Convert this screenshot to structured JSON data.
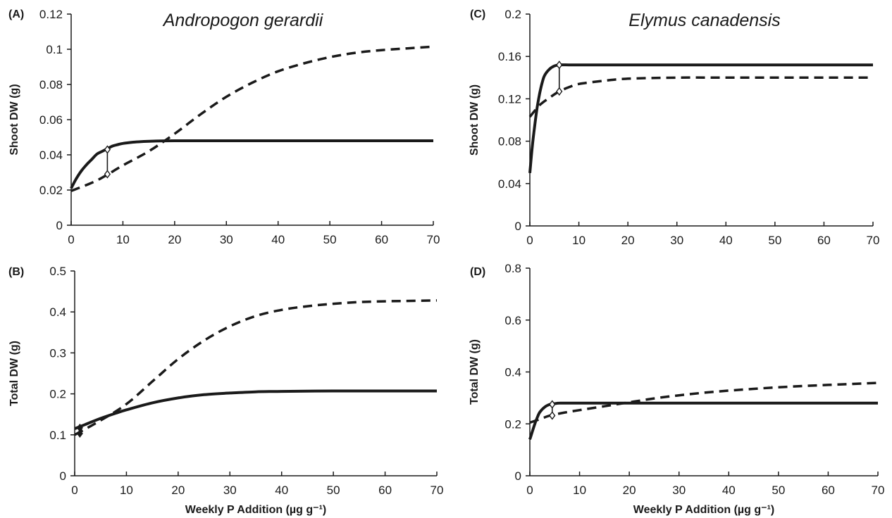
{
  "species": [
    "Andropogon gerardii",
    "Elymus canadensis"
  ],
  "chart_data": [
    {
      "id": "A",
      "panel_label": "(A)",
      "type": "line",
      "xlabel": "",
      "ylabel": "Shoot DW (g)",
      "xlim": [
        0,
        70
      ],
      "ylim": [
        0,
        0.12
      ],
      "xticks": [
        0,
        10,
        20,
        30,
        40,
        50,
        60,
        70
      ],
      "yticks": [
        0,
        0.02,
        0.04,
        0.06,
        0.08,
        0.1,
        0.12
      ],
      "ytick_labels": [
        "0",
        "0.02",
        "0.04",
        "0.06",
        "0.08",
        "0.1",
        "0.12"
      ],
      "series": [
        {
          "style": "solid",
          "x": [
            0,
            1,
            2,
            3,
            4,
            5,
            6,
            7,
            8,
            9,
            10,
            12,
            14,
            16,
            20,
            30,
            40,
            50,
            60,
            70
          ],
          "y": [
            0.021,
            0.0265,
            0.031,
            0.0345,
            0.0375,
            0.0405,
            0.042,
            0.0435,
            0.045,
            0.0458,
            0.0465,
            0.0472,
            0.0476,
            0.0478,
            0.048,
            0.048,
            0.048,
            0.048,
            0.048,
            0.048
          ]
        },
        {
          "style": "dashed",
          "x": [
            0,
            5,
            10,
            15,
            20,
            25,
            30,
            35,
            40,
            45,
            50,
            55,
            60,
            65,
            70
          ],
          "y": [
            0.0195,
            0.0255,
            0.034,
            0.042,
            0.052,
            0.063,
            0.073,
            0.081,
            0.0875,
            0.092,
            0.0955,
            0.098,
            0.0995,
            0.1005,
            0.1015
          ]
        }
      ],
      "markers": {
        "x": 7,
        "y": [
          0.043,
          0.029
        ],
        "filled": false
      }
    },
    {
      "id": "B",
      "panel_label": "(B)",
      "type": "line",
      "xlabel": "Weekly P Addition (µg g⁻¹)",
      "ylabel": "Total DW (g)",
      "xlim": [
        0,
        70
      ],
      "ylim": [
        0,
        0.5
      ],
      "xticks": [
        0,
        10,
        20,
        30,
        40,
        50,
        60,
        70
      ],
      "yticks": [
        0,
        0.1,
        0.2,
        0.3,
        0.4,
        0.5
      ],
      "ytick_labels": [
        "0",
        "0.1",
        "0.2",
        "0.3",
        "0.4",
        "0.5"
      ],
      "series": [
        {
          "style": "solid",
          "x": [
            0,
            2,
            5,
            8,
            10,
            15,
            20,
            25,
            30,
            35,
            40,
            50,
            60,
            70
          ],
          "y": [
            0.115,
            0.125,
            0.14,
            0.153,
            0.161,
            0.178,
            0.19,
            0.198,
            0.202,
            0.205,
            0.206,
            0.207,
            0.207,
            0.207
          ]
        },
        {
          "style": "dashed",
          "x": [
            0,
            5,
            10,
            15,
            20,
            25,
            30,
            35,
            40,
            45,
            50,
            55,
            60,
            65,
            70
          ],
          "y": [
            0.1,
            0.135,
            0.175,
            0.23,
            0.285,
            0.33,
            0.365,
            0.39,
            0.405,
            0.414,
            0.42,
            0.424,
            0.426,
            0.427,
            0.428
          ]
        }
      ],
      "markers": {
        "x": 1,
        "y": [
          0.117,
          0.103
        ],
        "filled": true
      }
    },
    {
      "id": "C",
      "panel_label": "(C)",
      "type": "line",
      "xlabel": "",
      "ylabel": "Shoot DW (g)",
      "xlim": [
        0,
        70
      ],
      "ylim": [
        0,
        0.2
      ],
      "xticks": [
        0,
        10,
        20,
        30,
        40,
        50,
        60,
        70
      ],
      "yticks": [
        0,
        0.04,
        0.08,
        0.12,
        0.16,
        0.2
      ],
      "ytick_labels": [
        "0",
        "0.04",
        "0.08",
        "0.12",
        "0.16",
        "0.2"
      ],
      "series": [
        {
          "style": "solid",
          "x": [
            0,
            0.5,
            1,
            1.5,
            2,
            2.5,
            3,
            4,
            5,
            6,
            8,
            10,
            20,
            30,
            40,
            50,
            60,
            70
          ],
          "y": [
            0.05,
            0.075,
            0.095,
            0.112,
            0.125,
            0.135,
            0.142,
            0.148,
            0.151,
            0.152,
            0.152,
            0.152,
            0.152,
            0.152,
            0.152,
            0.152,
            0.152,
            0.152
          ]
        },
        {
          "style": "dashed",
          "x": [
            0,
            2,
            4,
            6,
            8,
            10,
            15,
            20,
            30,
            40,
            50,
            60,
            70
          ],
          "y": [
            0.103,
            0.114,
            0.121,
            0.127,
            0.131,
            0.134,
            0.137,
            0.139,
            0.14,
            0.14,
            0.14,
            0.14,
            0.14
          ]
        }
      ],
      "markers": {
        "x": 6,
        "y": [
          0.152,
          0.127
        ],
        "filled": false
      }
    },
    {
      "id": "D",
      "panel_label": "(D)",
      "type": "line",
      "xlabel": "Weekly P Addition (µg g⁻¹)",
      "ylabel": "Total DW (g)",
      "xlim": [
        0,
        70
      ],
      "ylim": [
        0,
        0.8
      ],
      "xticks": [
        0,
        10,
        20,
        30,
        40,
        50,
        60,
        70
      ],
      "yticks": [
        0,
        0.2,
        0.4,
        0.6,
        0.8
      ],
      "ytick_labels": [
        "0",
        "0.2",
        "0.4",
        "0.6",
        "0.8"
      ],
      "series": [
        {
          "style": "solid",
          "x": [
            0,
            0.5,
            1,
            1.5,
            2,
            3,
            4,
            5,
            6,
            8,
            10,
            20,
            30,
            40,
            50,
            60,
            70
          ],
          "y": [
            0.14,
            0.17,
            0.2,
            0.225,
            0.245,
            0.265,
            0.275,
            0.278,
            0.28,
            0.28,
            0.28,
            0.28,
            0.28,
            0.28,
            0.28,
            0.28,
            0.28
          ]
        },
        {
          "style": "dashed",
          "x": [
            0,
            2,
            4,
            6,
            8,
            10,
            15,
            20,
            25,
            30,
            35,
            40,
            45,
            50,
            55,
            60,
            65,
            70
          ],
          "y": [
            0.205,
            0.218,
            0.232,
            0.24,
            0.247,
            0.253,
            0.268,
            0.283,
            0.298,
            0.31,
            0.32,
            0.328,
            0.335,
            0.341,
            0.346,
            0.35,
            0.354,
            0.358
          ]
        }
      ],
      "markers": {
        "x": 4.5,
        "y": [
          0.275,
          0.232
        ],
        "filled": false
      }
    }
  ]
}
